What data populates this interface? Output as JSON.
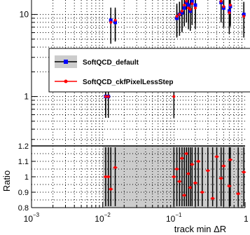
{
  "chart_data": [
    {
      "type": "scatter",
      "panel": "main",
      "xscale": "log",
      "yscale": "log",
      "xlim": [
        0.001,
        1.0
      ],
      "ylim": [
        0.25,
        15
      ],
      "grid": true,
      "xticks": [
        0.001,
        0.01,
        0.1,
        1
      ],
      "yticks": [
        1,
        10
      ],
      "ytick_labels": [
        "1",
        "10"
      ],
      "legend": {
        "placement": "upper-middle"
      },
      "series": [
        {
          "name": "SoftQCD_default",
          "color": "#0000ff",
          "marker": "square",
          "x": [
            0.011,
            0.012,
            0.013,
            0.015,
            0.11,
            0.12,
            0.13,
            0.14,
            0.15,
            0.16,
            0.17,
            0.18,
            0.2,
            0.46,
            0.5,
            0.6,
            0.62,
            0.96
          ],
          "y": [
            1.0,
            1.0,
            8.5,
            8.0,
            9.0,
            10.0,
            10.5,
            12.0,
            14.0,
            13.0,
            11.0,
            14.5,
            13.0,
            14.0,
            12.0,
            11.0,
            12.5,
            10.0
          ]
        },
        {
          "name": "SoftQCD_ckfPixelLessStep",
          "color": "#ff0000",
          "marker": "circle",
          "x": [
            0.011,
            0.012,
            0.013,
            0.015,
            0.1,
            0.11,
            0.12,
            0.13,
            0.14,
            0.15,
            0.16,
            0.17,
            0.18,
            0.2,
            0.46,
            0.5,
            0.6,
            0.62,
            0.96
          ],
          "y": [
            1.0,
            1.0,
            8.0,
            8.5,
            1.0,
            9.5,
            10.0,
            11.0,
            13.0,
            14.5,
            12.0,
            11.5,
            13.5,
            12.0,
            14.5,
            12.5,
            10.5,
            13.0,
            9.5
          ]
        }
      ]
    },
    {
      "type": "scatter",
      "panel": "ratio",
      "xscale": "log",
      "xlim": [
        0.001,
        1.0
      ],
      "ylim": [
        0.8,
        1.2
      ],
      "grid": true,
      "xticks": [
        0.001,
        0.01,
        0.1,
        1
      ],
      "yticks": [
        0.8,
        0.9,
        1.0,
        1.1,
        1.2
      ],
      "ytick_labels": [
        "0.8",
        "0.9",
        "1",
        "1.1",
        "1.2"
      ],
      "xlabel": "track min ΔR",
      "ylabel": "Ratio",
      "band": {
        "x_from": 0.01,
        "x_to": 1.0,
        "y_from": 0.8,
        "y_to": 1.2,
        "color": "#cccccc"
      },
      "series": [
        {
          "color": "#ff0000",
          "marker": "circle",
          "x": [
            0.011,
            0.012,
            0.013,
            0.015,
            0.1,
            0.11,
            0.12,
            0.13,
            0.14,
            0.15,
            0.16,
            0.17,
            0.18,
            0.2,
            0.22,
            0.25,
            0.3,
            0.35,
            0.4,
            0.46,
            0.5,
            0.6,
            0.62,
            0.8,
            0.96
          ],
          "y": [
            1.0,
            1.0,
            0.92,
            1.06,
            1.0,
            1.05,
            0.97,
            1.12,
            0.88,
            1.15,
            1.02,
            0.93,
            1.08,
            0.96,
            1.1,
            0.9,
            1.04,
            0.86,
            1.13,
            0.99,
            1.07,
            0.94,
            1.11,
            0.89,
            1.03
          ]
        }
      ]
    }
  ]
}
